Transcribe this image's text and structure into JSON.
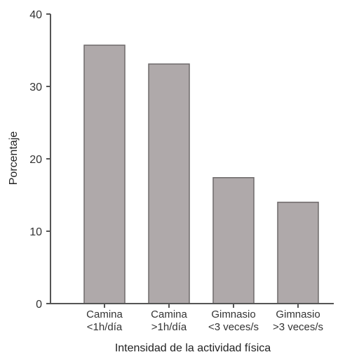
{
  "chart_data": {
    "type": "bar",
    "title": "",
    "xlabel": "Intensidad de la actividad física",
    "ylabel": "Porcentaje",
    "ylim": [
      0,
      40
    ],
    "yticks": [
      0,
      10,
      20,
      30,
      40
    ],
    "grid": false,
    "bar_color": "#afa9aa",
    "bar_edge_color": "#6f6a6b",
    "categories": [
      {
        "line1": "Camina",
        "line2": "<1h/día"
      },
      {
        "line1": "Camina",
        "line2": ">1h/día"
      },
      {
        "line1": "Gimnasio",
        "line2": "<3 veces/s"
      },
      {
        "line1": "Gimnasio",
        "line2": ">3 veces/s"
      }
    ],
    "values": [
      35.7,
      33.1,
      17.4,
      14.0
    ]
  }
}
